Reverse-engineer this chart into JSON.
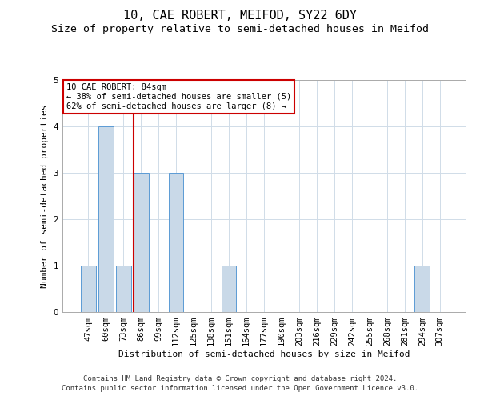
{
  "title": "10, CAE ROBERT, MEIFOD, SY22 6DY",
  "subtitle": "Size of property relative to semi-detached houses in Meifod",
  "xlabel": "Distribution of semi-detached houses by size in Meifod",
  "ylabel": "Number of semi-detached properties",
  "categories": [
    "47sqm",
    "60sqm",
    "73sqm",
    "86sqm",
    "99sqm",
    "112sqm",
    "125sqm",
    "138sqm",
    "151sqm",
    "164sqm",
    "177sqm",
    "190sqm",
    "203sqm",
    "216sqm",
    "229sqm",
    "242sqm",
    "255sqm",
    "268sqm",
    "281sqm",
    "294sqm",
    "307sqm"
  ],
  "values": [
    1,
    4,
    1,
    3,
    0,
    3,
    0,
    0,
    1,
    0,
    0,
    0,
    0,
    0,
    0,
    0,
    0,
    0,
    0,
    1,
    0
  ],
  "bar_color": "#c9d9e8",
  "bar_edgecolor": "#5b9bd5",
  "highlight_line_index": 3,
  "annotation_line1": "10 CAE ROBERT: 84sqm",
  "annotation_line2": "← 38% of semi-detached houses are smaller (5)",
  "annotation_line3": "62% of semi-detached houses are larger (8) →",
  "annotation_box_color": "#ffffff",
  "annotation_box_edgecolor": "#cc0000",
  "footer_line1": "Contains HM Land Registry data © Crown copyright and database right 2024.",
  "footer_line2": "Contains public sector information licensed under the Open Government Licence v3.0.",
  "ylim": [
    0,
    5
  ],
  "yticks": [
    0,
    1,
    2,
    3,
    4,
    5
  ],
  "title_fontsize": 11,
  "subtitle_fontsize": 9.5,
  "axis_label_fontsize": 8,
  "tick_fontsize": 7.5,
  "annotation_fontsize": 7.5,
  "footer_fontsize": 6.5,
  "background_color": "#ffffff",
  "grid_color": "#d0dce8"
}
